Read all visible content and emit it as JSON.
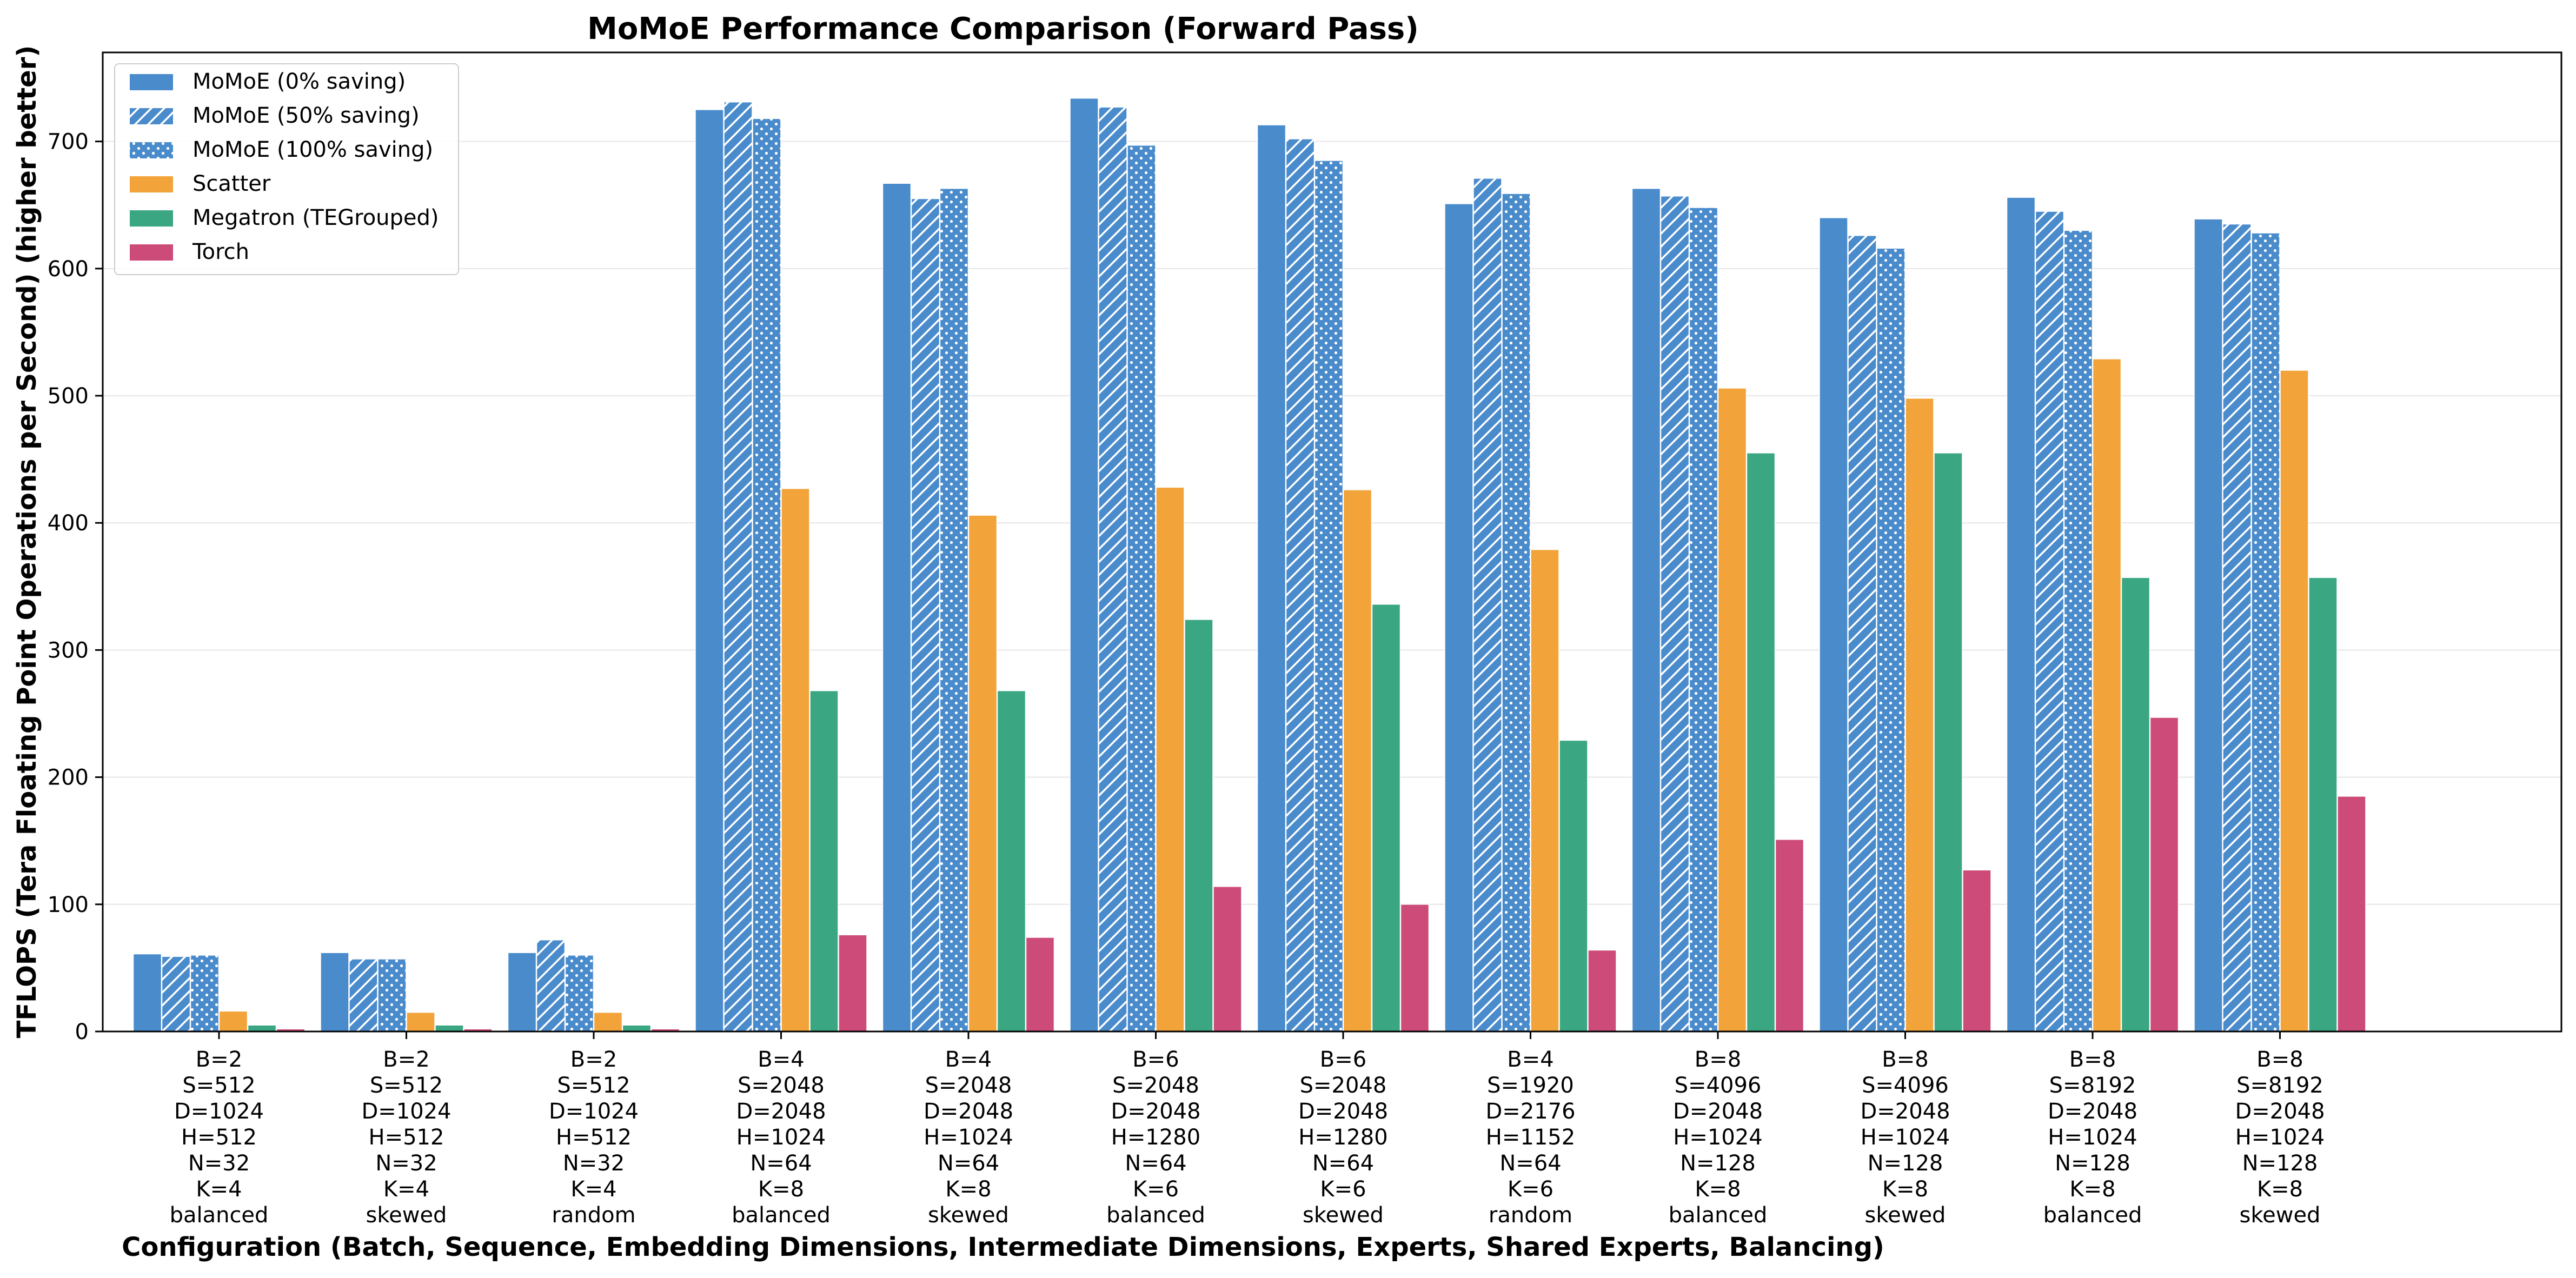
{
  "chart_data": {
    "type": "bar",
    "title": "MoMoE Performance Comparison (Forward Pass)",
    "xlabel": "Configuration (Batch, Sequence, Embedding Dimensions, Intermediate Dimensions, Experts, Shared Experts, Balancing)",
    "ylabel": "TFLOPS (Tera Floating Point Operations per Second) (higher better)",
    "ylim": [
      0,
      770
    ],
    "yticks": [
      0,
      100,
      200,
      300,
      400,
      500,
      600,
      700
    ],
    "grid": "horizontal",
    "legend_position": "top-left",
    "categories": [
      [
        "B=2",
        "S=512",
        "D=1024",
        "H=512",
        "N=32",
        "K=4",
        "balanced"
      ],
      [
        "B=2",
        "S=512",
        "D=1024",
        "H=512",
        "N=32",
        "K=4",
        "skewed"
      ],
      [
        "B=2",
        "S=512",
        "D=1024",
        "H=512",
        "N=32",
        "K=4",
        "random"
      ],
      [
        "B=4",
        "S=2048",
        "D=2048",
        "H=1024",
        "N=64",
        "K=8",
        "balanced"
      ],
      [
        "B=4",
        "S=2048",
        "D=2048",
        "H=1024",
        "N=64",
        "K=8",
        "skewed"
      ],
      [
        "B=6",
        "S=2048",
        "D=2048",
        "H=1280",
        "N=64",
        "K=6",
        "balanced"
      ],
      [
        "B=6",
        "S=2048",
        "D=2048",
        "H=1280",
        "N=64",
        "K=6",
        "skewed"
      ],
      [
        "B=4",
        "S=1920",
        "D=2176",
        "H=1152",
        "N=64",
        "K=6",
        "random"
      ],
      [
        "B=8",
        "S=4096",
        "D=2048",
        "H=1024",
        "N=128",
        "K=8",
        "balanced"
      ],
      [
        "B=8",
        "S=4096",
        "D=2048",
        "H=1024",
        "N=128",
        "K=8",
        "skewed"
      ],
      [
        "B=8",
        "S=8192",
        "D=2048",
        "H=1024",
        "N=128",
        "K=8",
        "balanced"
      ],
      [
        "B=8",
        "S=8192",
        "D=2048",
        "H=1024",
        "N=128",
        "K=8",
        "skewed"
      ]
    ],
    "series": [
      {
        "name": "MoMoE (0% saving)",
        "color": "#4a8bcc",
        "pattern": "solid",
        "values": [
          61,
          62,
          62,
          725,
          667,
          734,
          713,
          651,
          663,
          640,
          656,
          639
        ]
      },
      {
        "name": "MoMoE (50% saving)",
        "color": "#4a8bcc",
        "pattern": "hatch",
        "values": [
          59,
          57,
          72,
          731,
          655,
          727,
          702,
          671,
          657,
          626,
          645,
          635
        ]
      },
      {
        "name": "MoMoE (100% saving)",
        "color": "#4a8bcc",
        "pattern": "dots",
        "values": [
          60,
          57,
          60,
          718,
          663,
          697,
          685,
          659,
          648,
          616,
          630,
          628
        ]
      },
      {
        "name": "Scatter",
        "color": "#f2a33a",
        "pattern": "solid",
        "values": [
          16,
          15,
          15,
          427,
          406,
          428,
          426,
          379,
          506,
          498,
          529,
          520
        ]
      },
      {
        "name": "Megatron (TEGrouped)",
        "color": "#3aa682",
        "pattern": "solid",
        "values": [
          5,
          5,
          5,
          268,
          268,
          324,
          336,
          229,
          455,
          455,
          357,
          357
        ]
      },
      {
        "name": "Torch",
        "color": "#cc4b79",
        "pattern": "solid",
        "values": [
          2,
          2,
          2,
          76,
          74,
          114,
          100,
          64,
          151,
          127,
          247,
          185
        ]
      }
    ]
  }
}
